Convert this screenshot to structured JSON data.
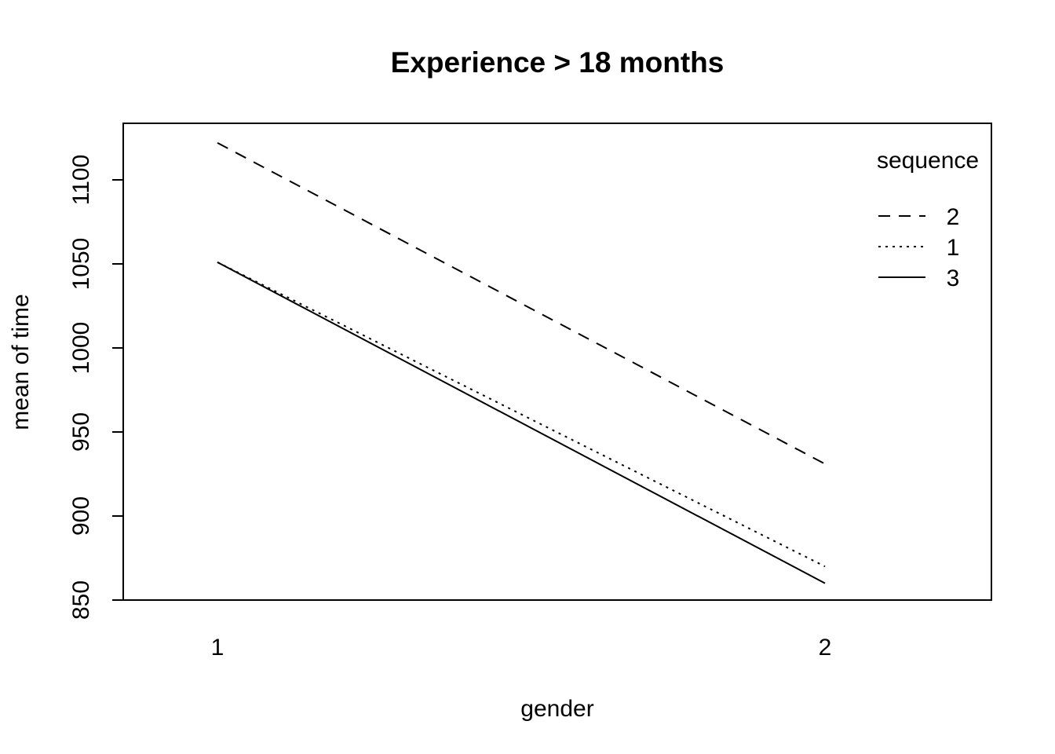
{
  "chart_data": {
    "type": "line",
    "title": "Experience > 18 months",
    "xlabel": "gender",
    "ylabel": "mean of  time",
    "categories": [
      "1",
      "2"
    ],
    "ylim": [
      850,
      1120
    ],
    "yticks": [
      850,
      900,
      950,
      1000,
      1050,
      1100
    ],
    "ytick_labels": [
      "850",
      "900",
      "950",
      "1000",
      "1050",
      "1100"
    ],
    "grid": false,
    "legend_title": "sequence",
    "legend_position": "top-right",
    "series": [
      {
        "name": "2",
        "linestyle": "dashed",
        "values": [
          1122,
          931
        ]
      },
      {
        "name": "1",
        "linestyle": "dotted",
        "values": [
          1051,
          870
        ]
      },
      {
        "name": "3",
        "linestyle": "solid",
        "values": [
          1051,
          860
        ]
      }
    ]
  }
}
